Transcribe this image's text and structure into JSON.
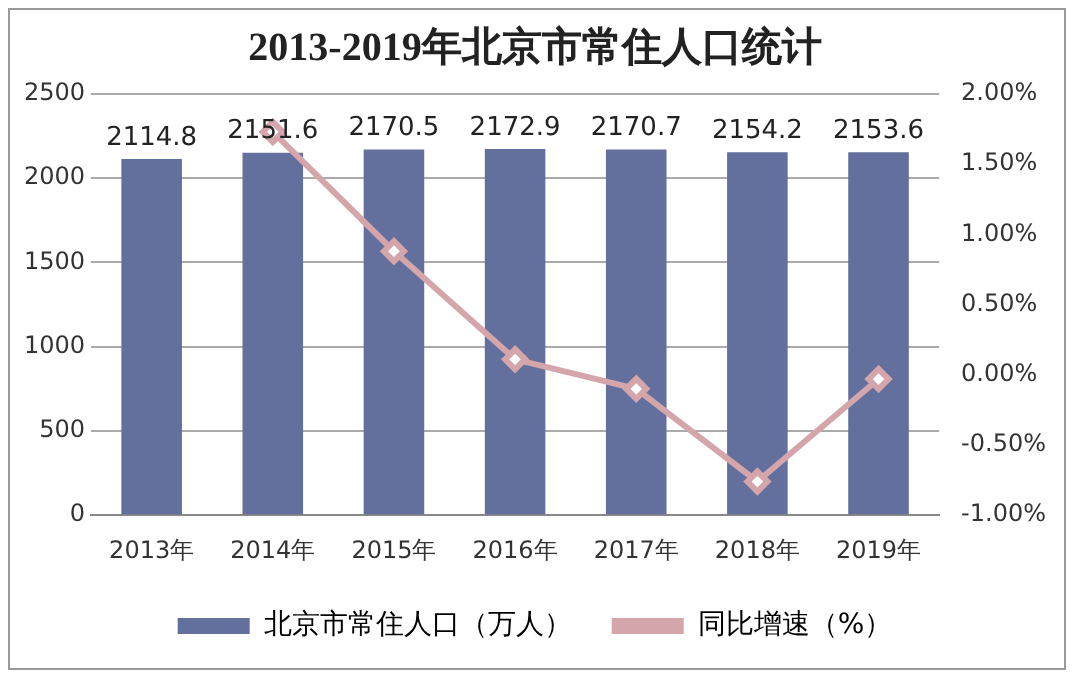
{
  "chart_data": {
    "type": "bar",
    "title": "2013-2019年北京市常住人口统计",
    "categories": [
      "2013年",
      "2014年",
      "2015年",
      "2016年",
      "2017年",
      "2018年",
      "2019年"
    ],
    "series": [
      {
        "name": "北京市常住人口（万人）",
        "color": "#636f9c",
        "values": [
          2114.8,
          2151.6,
          2170.5,
          2172.9,
          2170.7,
          2154.2,
          2153.6
        ],
        "value_labels": [
          "2114.8",
          "2151.6",
          "2170.5",
          "2172.9",
          "2170.7",
          "2154.2",
          "2153.6"
        ]
      },
      {
        "name": "同比增速（%）",
        "type": "line",
        "axis": "y2",
        "color": "#d4a5aa",
        "values": [
          null,
          1.73,
          0.88,
          0.11,
          -0.1,
          -0.76,
          -0.03
        ]
      }
    ],
    "ylim": [
      0,
      2500
    ],
    "yticks": [
      0,
      500,
      1000,
      1500,
      2000,
      2500
    ],
    "y2lim": [
      -1,
      2
    ],
    "y2ticks": [
      {
        "value": -1,
        "label": "-1.00%"
      },
      {
        "value": -0.5,
        "label": "-0.50%"
      },
      {
        "value": 0,
        "label": "0.00%"
      },
      {
        "value": 0.5,
        "label": "0.50%"
      },
      {
        "value": 1,
        "label": "1.00%"
      },
      {
        "value": 1.5,
        "label": "1.50%"
      },
      {
        "value": 2,
        "label": "2.00%"
      }
    ],
    "grid": "y",
    "legend": "bottom",
    "marker": "diamond",
    "line_style": "solid"
  }
}
